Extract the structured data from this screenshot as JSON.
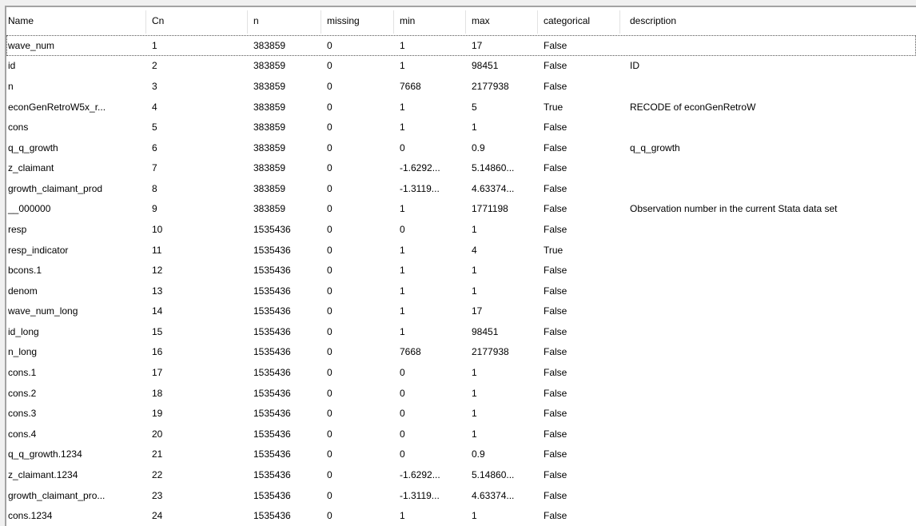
{
  "colors": {
    "background": "#f0f0f0",
    "panel_background": "#ffffff",
    "panel_border": "#a3a3a3",
    "header_divider": "#e2e2e2",
    "text": "#000000",
    "focus_outline": "#555555"
  },
  "table": {
    "columns": [
      {
        "key": "name",
        "label": "Name"
      },
      {
        "key": "cn",
        "label": "Cn"
      },
      {
        "key": "n",
        "label": "n"
      },
      {
        "key": "missing",
        "label": "missing"
      },
      {
        "key": "min",
        "label": "min"
      },
      {
        "key": "max",
        "label": "max"
      },
      {
        "key": "categorical",
        "label": "categorical"
      },
      {
        "key": "description",
        "label": "description"
      }
    ],
    "focused_row_index": 0,
    "rows": [
      {
        "name": "wave_num",
        "cn": "1",
        "n": "383859",
        "missing": "0",
        "min": "1",
        "max": "17",
        "categorical": "False",
        "description": ""
      },
      {
        "name": "id",
        "cn": "2",
        "n": "383859",
        "missing": "0",
        "min": "1",
        "max": "98451",
        "categorical": "False",
        "description": "ID"
      },
      {
        "name": "n",
        "cn": "3",
        "n": "383859",
        "missing": "0",
        "min": "7668",
        "max": "2177938",
        "categorical": "False",
        "description": ""
      },
      {
        "name": "econGenRetroW5x_r...",
        "cn": "4",
        "n": "383859",
        "missing": "0",
        "min": "1",
        "max": "5",
        "categorical": "True",
        "description": "RECODE of econGenRetroW"
      },
      {
        "name": "cons",
        "cn": "5",
        "n": "383859",
        "missing": "0",
        "min": "1",
        "max": "1",
        "categorical": "False",
        "description": ""
      },
      {
        "name": "q_q_growth",
        "cn": "6",
        "n": "383859",
        "missing": "0",
        "min": "0",
        "max": "0.9",
        "categorical": "False",
        "description": "q_q_growth"
      },
      {
        "name": "z_claimant",
        "cn": "7",
        "n": "383859",
        "missing": "0",
        "min": "-1.6292...",
        "max": "5.14860...",
        "categorical": "False",
        "description": ""
      },
      {
        "name": "growth_claimant_prod",
        "cn": "8",
        "n": "383859",
        "missing": "0",
        "min": "-1.3119...",
        "max": "4.63374...",
        "categorical": "False",
        "description": ""
      },
      {
        "name": "__000000",
        "cn": "9",
        "n": "383859",
        "missing": "0",
        "min": "1",
        "max": "1771198",
        "categorical": "False",
        "description": "Observation number in the current Stata data set"
      },
      {
        "name": "resp",
        "cn": "10",
        "n": "1535436",
        "missing": "0",
        "min": "0",
        "max": "1",
        "categorical": "False",
        "description": ""
      },
      {
        "name": "resp_indicator",
        "cn": "11",
        "n": "1535436",
        "missing": "0",
        "min": "1",
        "max": "4",
        "categorical": "True",
        "description": ""
      },
      {
        "name": "bcons.1",
        "cn": "12",
        "n": "1535436",
        "missing": "0",
        "min": "1",
        "max": "1",
        "categorical": "False",
        "description": ""
      },
      {
        "name": "denom",
        "cn": "13",
        "n": "1535436",
        "missing": "0",
        "min": "1",
        "max": "1",
        "categorical": "False",
        "description": ""
      },
      {
        "name": "wave_num_long",
        "cn": "14",
        "n": "1535436",
        "missing": "0",
        "min": "1",
        "max": "17",
        "categorical": "False",
        "description": ""
      },
      {
        "name": "id_long",
        "cn": "15",
        "n": "1535436",
        "missing": "0",
        "min": "1",
        "max": "98451",
        "categorical": "False",
        "description": ""
      },
      {
        "name": "n_long",
        "cn": "16",
        "n": "1535436",
        "missing": "0",
        "min": "7668",
        "max": "2177938",
        "categorical": "False",
        "description": ""
      },
      {
        "name": "cons.1",
        "cn": "17",
        "n": "1535436",
        "missing": "0",
        "min": "0",
        "max": "1",
        "categorical": "False",
        "description": ""
      },
      {
        "name": "cons.2",
        "cn": "18",
        "n": "1535436",
        "missing": "0",
        "min": "0",
        "max": "1",
        "categorical": "False",
        "description": ""
      },
      {
        "name": "cons.3",
        "cn": "19",
        "n": "1535436",
        "missing": "0",
        "min": "0",
        "max": "1",
        "categorical": "False",
        "description": ""
      },
      {
        "name": "cons.4",
        "cn": "20",
        "n": "1535436",
        "missing": "0",
        "min": "0",
        "max": "1",
        "categorical": "False",
        "description": ""
      },
      {
        "name": "q_q_growth.1234",
        "cn": "21",
        "n": "1535436",
        "missing": "0",
        "min": "0",
        "max": "0.9",
        "categorical": "False",
        "description": ""
      },
      {
        "name": "z_claimant.1234",
        "cn": "22",
        "n": "1535436",
        "missing": "0",
        "min": "-1.6292...",
        "max": "5.14860...",
        "categorical": "False",
        "description": ""
      },
      {
        "name": "growth_claimant_pro...",
        "cn": "23",
        "n": "1535436",
        "missing": "0",
        "min": "-1.3119...",
        "max": "4.63374...",
        "categorical": "False",
        "description": ""
      },
      {
        "name": "cons.1234",
        "cn": "24",
        "n": "1535436",
        "missing": "0",
        "min": "1",
        "max": "1",
        "categorical": "False",
        "description": ""
      }
    ]
  }
}
